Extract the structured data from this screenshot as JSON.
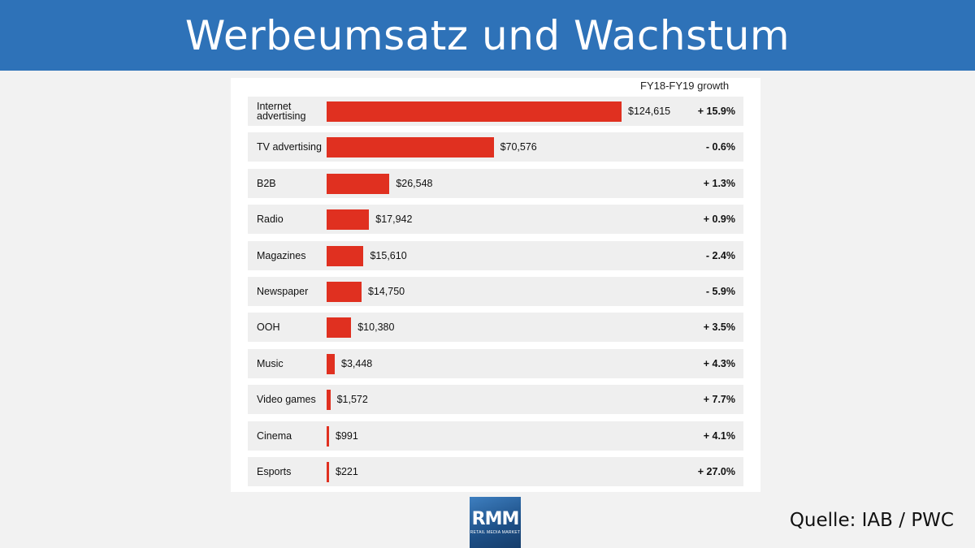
{
  "header": {
    "title": "Werbeumsatz und Wachstum"
  },
  "source": "Quelle: IAB / PWC",
  "logo": {
    "main": "RMM",
    "sub": "RETAIL MEDIA MARKET"
  },
  "colors": {
    "header": "#2e72b8",
    "bar": "#e03020"
  },
  "chart_data": {
    "type": "bar",
    "orientation": "horizontal",
    "growth_header": "FY18-FY19 growth",
    "categories": [
      "Internet advertising",
      "TV advertising",
      "B2B",
      "Radio",
      "Magazines",
      "Newspaper",
      "OOH",
      "Music",
      "Video games",
      "Cinema",
      "Esports"
    ],
    "values": [
      124615,
      70576,
      26548,
      17942,
      15610,
      14750,
      10380,
      3448,
      1572,
      991,
      221
    ],
    "value_labels": [
      "$124,615",
      "$70,576",
      "$26,548",
      "$17,942",
      "$15,610",
      "$14,750",
      "$10,380",
      "$3,448",
      "$1,572",
      "$991",
      "$221"
    ],
    "growth": [
      "+ 15.9%",
      "- 0.6%",
      "+ 1.3%",
      "+ 0.9%",
      "- 2.4%",
      "- 5.9%",
      "+ 3.5%",
      "+ 4.3%",
      "+ 7.7%",
      "+ 4.1%",
      "+ 27.0%"
    ],
    "xlim": [
      0,
      124615
    ]
  }
}
